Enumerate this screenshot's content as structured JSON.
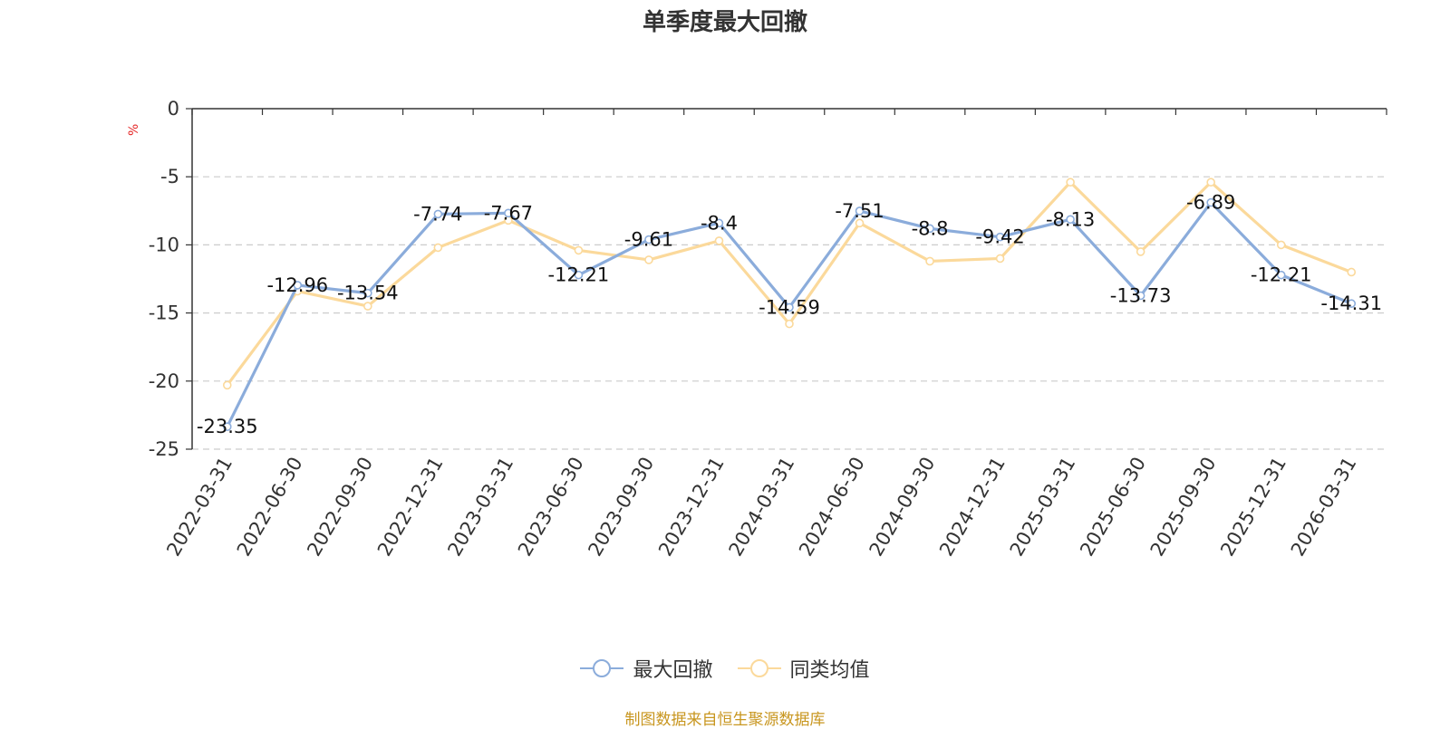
{
  "title": "单季度最大回撤",
  "unit": "%",
  "source_note": "制图数据来自恒生聚源数据库",
  "colors": {
    "series1": "#8bacdb",
    "series2": "#fbd99b",
    "axis": "#333333",
    "grid": "#cccccc"
  },
  "chart_data": {
    "type": "line",
    "title": "单季度最大回撤",
    "ylabel": "%",
    "ylim": [
      -25,
      0
    ],
    "yticks": [
      0,
      -5,
      -10,
      -15,
      -20,
      -25
    ],
    "grid": true,
    "legend_position": "bottom-center",
    "categories": [
      "2022-03-31",
      "2022-06-30",
      "2022-09-30",
      "2022-12-31",
      "2023-03-31",
      "2023-06-30",
      "2023-09-30",
      "2023-12-31",
      "2024-03-31",
      "2024-06-30",
      "2024-09-30",
      "2024-12-31",
      "2025-03-31",
      "2025-06-30",
      "2025-09-30",
      "2025-12-31",
      "2026-03-31"
    ],
    "series": [
      {
        "name": "最大回撤",
        "color": "#8bacdb",
        "labeled": true,
        "values": [
          -23.35,
          -12.96,
          -13.54,
          -7.74,
          -7.67,
          -12.21,
          -9.61,
          -8.4,
          -14.59,
          -7.51,
          -8.8,
          -9.42,
          -8.13,
          -13.73,
          -6.89,
          -12.21,
          -14.31
        ]
      },
      {
        "name": "同类均值",
        "color": "#fbd99b",
        "labeled": false,
        "values": [
          -20.3,
          -13.4,
          -14.5,
          -10.2,
          -8.2,
          -10.4,
          -11.1,
          -9.7,
          -15.8,
          -8.4,
          -11.2,
          -11.0,
          -5.4,
          -10.5,
          -5.4,
          -10.0,
          -12.0
        ]
      }
    ]
  }
}
